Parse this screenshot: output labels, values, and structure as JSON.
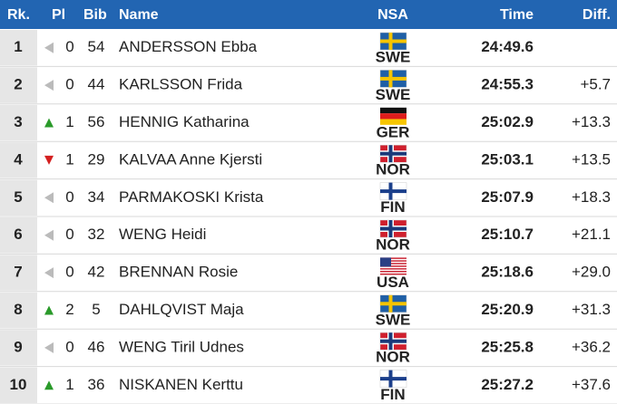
{
  "header": {
    "rank": "Rk.",
    "pl": "Pl",
    "bib": "Bib",
    "name": "Name",
    "nsa": "NSA",
    "time": "Time",
    "diff": "Diff."
  },
  "rows": [
    {
      "rank": 1,
      "trend": "same",
      "pl": 0,
      "bib": 54,
      "name": "ANDERSSON Ebba",
      "nsa": "SWE",
      "flag": {
        "style": "cross",
        "field": "#1f5fa6",
        "cross": "#f5c400"
      },
      "time": "24:49.6",
      "diff": null
    },
    {
      "rank": 2,
      "trend": "same",
      "pl": 0,
      "bib": 44,
      "name": "KARLSSON Frida",
      "nsa": "SWE",
      "flag": {
        "style": "cross",
        "field": "#1f5fa6",
        "cross": "#f5c400"
      },
      "time": "24:55.3",
      "diff": "+5.7"
    },
    {
      "rank": 3,
      "trend": "up",
      "pl": 1,
      "bib": 56,
      "name": "HENNIG Katharina",
      "nsa": "GER",
      "flag": {
        "style": "stripes",
        "colors": [
          "#111111",
          "#dd1c1c",
          "#f7c600"
        ]
      },
      "time": "25:02.9",
      "diff": "+13.3"
    },
    {
      "rank": 4,
      "trend": "down",
      "pl": 1,
      "bib": 29,
      "name": "KALVAA Anne Kjersti",
      "nsa": "NOR",
      "flag": {
        "style": "cross",
        "field": "#d0202e",
        "cross": "#1a3a7a",
        "border": "#ffffff"
      },
      "time": "25:03.1",
      "diff": "+13.5"
    },
    {
      "rank": 5,
      "trend": "same",
      "pl": 0,
      "bib": 34,
      "name": "PARMAKOSKI Krista",
      "nsa": "FIN",
      "flag": {
        "style": "cross",
        "field": "#ffffff",
        "cross": "#1b3f8b"
      },
      "time": "25:07.9",
      "diff": "+18.3"
    },
    {
      "rank": 6,
      "trend": "same",
      "pl": 0,
      "bib": 32,
      "name": "WENG Heidi",
      "nsa": "NOR",
      "flag": {
        "style": "cross",
        "field": "#d0202e",
        "cross": "#1a3a7a",
        "border": "#ffffff"
      },
      "time": "25:10.7",
      "diff": "+21.1"
    },
    {
      "rank": 7,
      "trend": "same",
      "pl": 0,
      "bib": 42,
      "name": "BRENNAN Rosie",
      "nsa": "USA",
      "flag": {
        "style": "stars-stripes",
        "stripe": "#c8202f",
        "canton": "#2a3f84"
      },
      "time": "25:18.6",
      "diff": "+29.0"
    },
    {
      "rank": 8,
      "trend": "up",
      "pl": 2,
      "bib": 5,
      "name": "DAHLQVIST Maja",
      "nsa": "SWE",
      "flag": {
        "style": "cross",
        "field": "#1f5fa6",
        "cross": "#f5c400"
      },
      "time": "25:20.9",
      "diff": "+31.3"
    },
    {
      "rank": 9,
      "trend": "same",
      "pl": 0,
      "bib": 46,
      "name": "WENG Tiril Udnes",
      "nsa": "NOR",
      "flag": {
        "style": "cross",
        "field": "#d0202e",
        "cross": "#1a3a7a",
        "border": "#ffffff"
      },
      "time": "25:25.8",
      "diff": "+36.2"
    },
    {
      "rank": 10,
      "trend": "up",
      "pl": 1,
      "bib": 36,
      "name": "NISKANEN Kerttu",
      "nsa": "FIN",
      "flag": {
        "style": "cross",
        "field": "#ffffff",
        "cross": "#1b3f8b"
      },
      "time": "25:27.2",
      "diff": "+37.6"
    }
  ]
}
